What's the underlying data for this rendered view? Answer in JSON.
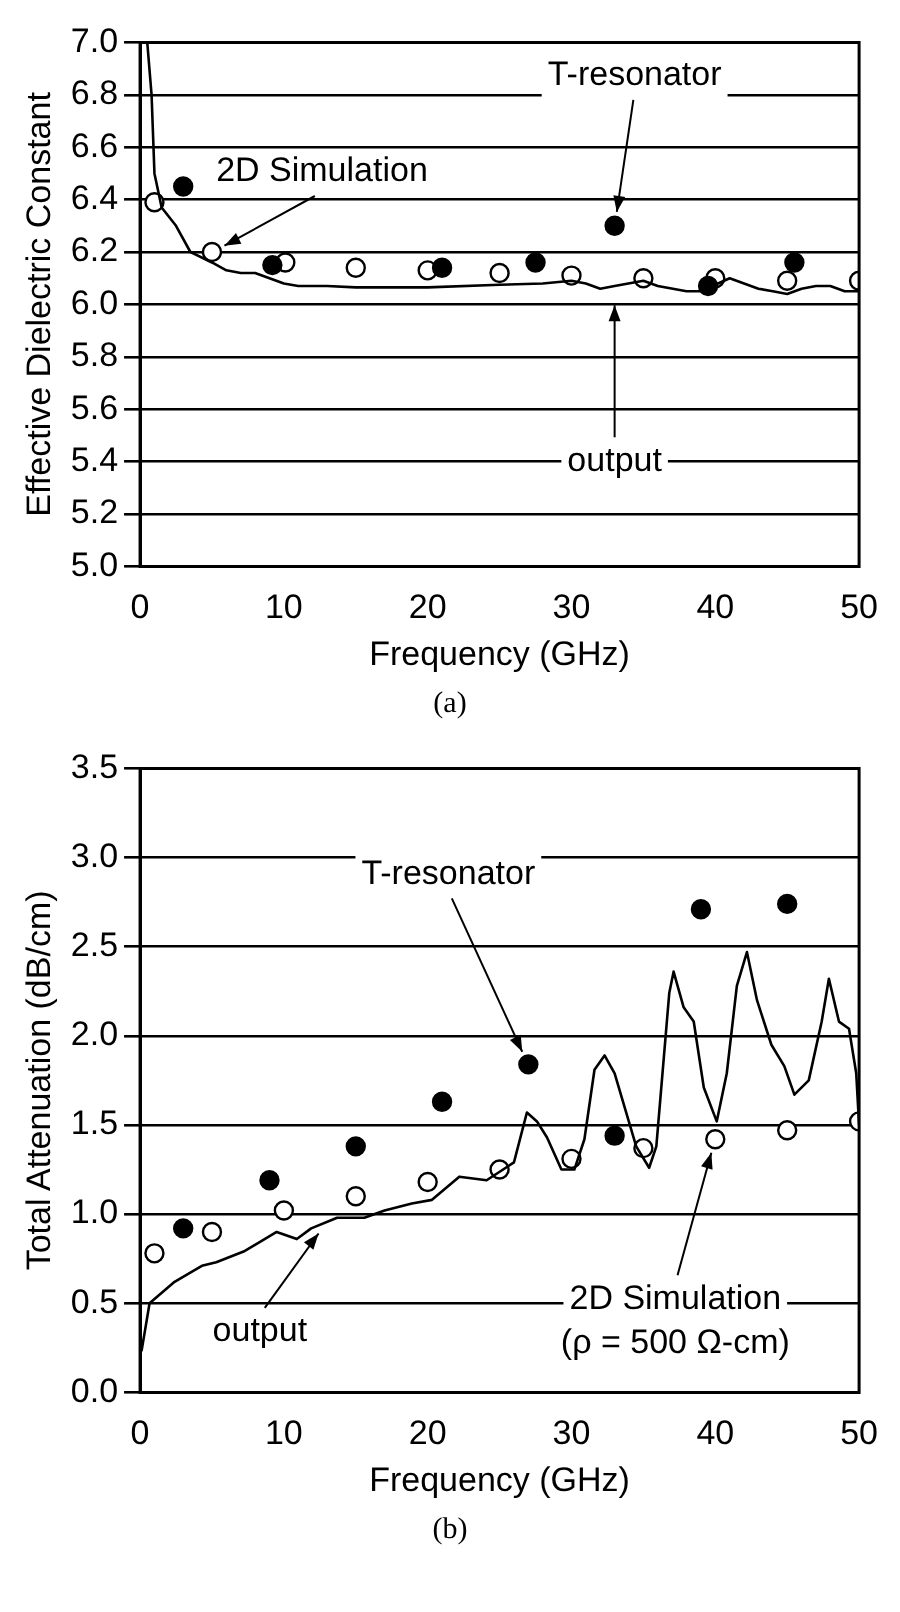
{
  "chart_data": [
    {
      "type": "scatter",
      "xlabel": "Frequency (GHz)",
      "ylabel": "Effective Dielectric Constant",
      "xlim": [
        0,
        50
      ],
      "xticks": [
        0,
        10,
        20,
        30,
        40,
        50
      ],
      "ylim": [
        5,
        7
      ],
      "yticks": [
        {
          "value": 5,
          "label": "5.0"
        },
        {
          "value": 5.2,
          "label": "5.2"
        },
        {
          "value": 5.4,
          "label": "5.4"
        },
        {
          "value": 5.6,
          "label": "5.6"
        },
        {
          "value": 5.8,
          "label": "5.8"
        },
        {
          "value": 6,
          "label": "6.0"
        },
        {
          "value": 6.2,
          "label": "6.2"
        },
        {
          "value": 6.4,
          "label": "6.4"
        },
        {
          "value": 6.6,
          "label": "6.6"
        },
        {
          "value": 6.8,
          "label": "6.8"
        },
        {
          "value": 7,
          "label": "7.0"
        }
      ],
      "grid": "y",
      "legend": false,
      "series": [
        {
          "type": "line",
          "color": "#000000",
          "marker": "none",
          "line_style": "solid",
          "x": [
            0.5,
            0.8,
            1,
            1.5,
            2.5,
            3.5,
            5,
            6,
            7,
            8,
            9,
            10,
            11,
            13,
            15,
            20,
            25,
            28,
            30,
            31,
            32,
            33,
            35,
            36,
            38,
            39,
            41,
            42,
            43,
            44,
            45,
            46,
            47,
            48,
            49,
            50
          ],
          "values": [
            7.0,
            6.8,
            6.5,
            6.37,
            6.3,
            6.2,
            6.16,
            6.13,
            6.12,
            6.12,
            6.1,
            6.08,
            6.07,
            6.07,
            6.065,
            6.065,
            6.075,
            6.08,
            6.09,
            6.08,
            6.06,
            6.07,
            6.09,
            6.07,
            6.05,
            6.05,
            6.1,
            6.08,
            6.06,
            6.05,
            6.04,
            6.06,
            6.07,
            6.07,
            6.05,
            6.05
          ]
        },
        {
          "type": "scatter",
          "color": "#000000",
          "marker": "circle",
          "x": [
            3,
            9.2,
            21,
            27.5,
            33,
            39.5,
            45.5
          ],
          "values": [
            6.45,
            6.15,
            6.14,
            6.16,
            6.3,
            6.07,
            6.16
          ]
        },
        {
          "type": "scatter",
          "color": "#ffffff",
          "marker": "circle",
          "x": [
            1,
            5,
            10.1,
            15,
            20,
            25,
            30,
            35,
            40,
            45,
            50
          ],
          "values": [
            6.39,
            6.2,
            6.16,
            6.14,
            6.13,
            6.12,
            6.11,
            6.1,
            6.1,
            6.09,
            6.09
          ]
        }
      ],
      "annotations": [
        {
          "text": "T-resonator",
          "x": 33,
          "y": 6.3
        },
        {
          "text": "2D Simulation",
          "x": 5,
          "y": 6.2
        },
        {
          "text": "output",
          "x": 33,
          "y": 6.05
        },
        "(a)"
      ]
    },
    {
      "type": "scatter",
      "xlabel": "Frequency (GHz)",
      "ylabel": "Total Attenuation (dB/cm)",
      "xlim": [
        0,
        50
      ],
      "xticks": [
        0,
        10,
        20,
        30,
        40,
        50
      ],
      "ylim": [
        0,
        3.5
      ],
      "yticks": [
        {
          "value": 0,
          "label": "0.0"
        },
        {
          "value": 0.5,
          "label": "0.5"
        },
        {
          "value": 1,
          "label": "1.0"
        },
        {
          "value": 1.5,
          "label": "1.5"
        },
        {
          "value": 2,
          "label": "2.0"
        },
        {
          "value": 2.5,
          "label": "2.5"
        },
        {
          "value": 3,
          "label": "3.0"
        },
        {
          "value": 3.5,
          "label": "3.5"
        }
      ],
      "grid": "y",
      "legend": false,
      "series": [
        {
          "type": "line",
          "color": "#000000",
          "marker": "none",
          "line_style": "solid",
          "x": [
            0.1,
            0.66,
            2.4,
            4.3,
            5.3,
            7.2,
            9.5,
            10.9,
            11.9,
            13.7,
            15.6,
            17,
            18.9,
            20.3,
            22.2,
            24.1,
            26,
            26.9,
            27.6,
            28.3,
            29.3,
            30.2,
            30.9,
            31.6,
            32.3,
            33,
            34.5,
            35.4,
            35.9,
            36.8,
            37.1,
            37.8,
            38.5,
            39.2,
            40.1,
            40.8,
            41.5,
            42.2,
            42.9,
            43.9,
            44.8,
            45.5,
            46.5,
            47.4,
            47.9,
            48.6,
            49.3,
            49.8,
            50
          ],
          "values": [
            0.23,
            0.5,
            0.62,
            0.71,
            0.73,
            0.79,
            0.9,
            0.86,
            0.92,
            0.98,
            0.98,
            1.02,
            1.06,
            1.08,
            1.21,
            1.19,
            1.29,
            1.57,
            1.52,
            1.43,
            1.25,
            1.25,
            1.42,
            1.81,
            1.89,
            1.79,
            1.38,
            1.26,
            1.38,
            2.24,
            2.36,
            2.16,
            2.08,
            1.71,
            1.52,
            1.79,
            2.28,
            2.47,
            2.2,
            1.95,
            1.83,
            1.67,
            1.75,
            2.08,
            2.32,
            2.08,
            2.04,
            1.79,
            1.5
          ]
        },
        {
          "type": "scatter",
          "color": "#000000",
          "marker": "circle",
          "x": [
            3,
            9,
            15,
            21,
            27,
            33,
            39,
            45
          ],
          "values": [
            0.92,
            1.19,
            1.38,
            1.63,
            1.84,
            1.44,
            2.71,
            2.74
          ]
        },
        {
          "type": "scatter",
          "color": "#ffffff",
          "marker": "circle",
          "x": [
            1,
            5,
            10,
            15,
            20,
            25,
            30,
            35,
            40,
            45,
            50
          ],
          "values": [
            0.78,
            0.9,
            1.02,
            1.1,
            1.18,
            1.25,
            1.31,
            1.37,
            1.42,
            1.47,
            1.52
          ]
        }
      ],
      "annotations": [
        {
          "text": "T-resonator",
          "x": 27,
          "y": 1.84
        },
        {
          "text": "2D Simulation\n(ρ = 500 Ω-cm)",
          "x": 40,
          "y": 1.42
        },
        {
          "text": "output",
          "x": 12.5,
          "y": 0.9
        },
        "(b)"
      ]
    }
  ]
}
